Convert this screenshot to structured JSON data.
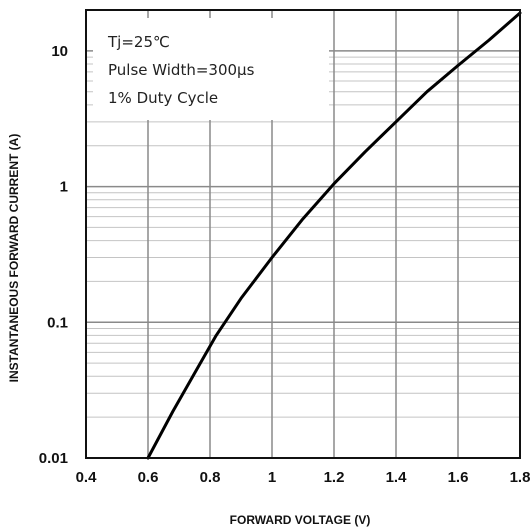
{
  "chart_data": {
    "type": "line",
    "title": "",
    "xlabel": "FORWARD VOLTAGE (V)",
    "ylabel": "INSTANTANEOUS FORWARD CURRENT (A)",
    "xlim": [
      0.4,
      1.8
    ],
    "ylim": [
      0.01,
      20
    ],
    "yscale": "log",
    "grid": true,
    "x_ticks": [
      0.4,
      0.6,
      0.8,
      1.0,
      1.2,
      1.4,
      1.6,
      1.8
    ],
    "x_tick_labels": [
      "0.4",
      "0.6",
      "0.8",
      "1",
      "1.2",
      "1.4",
      "1.6",
      "1.8"
    ],
    "y_ticks": [
      0.01,
      0.1,
      1,
      10
    ],
    "y_tick_labels": [
      "0.01",
      "0.1",
      "1",
      "10"
    ],
    "annotations": [
      "Tj=25℃",
      "Pulse Width=300μs",
      "1% Duty Cycle"
    ],
    "series": [
      {
        "x": [
          0.6,
          0.68,
          0.75,
          0.82,
          0.9,
          1.0,
          1.1,
          1.2,
          1.3,
          1.4,
          1.5,
          1.6,
          1.7,
          1.8
        ],
        "y": [
          0.01,
          0.022,
          0.042,
          0.08,
          0.15,
          0.3,
          0.58,
          1.05,
          1.8,
          3.0,
          5.0,
          7.8,
          12.0,
          19.0
        ]
      }
    ]
  }
}
